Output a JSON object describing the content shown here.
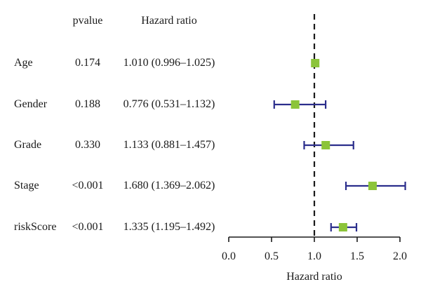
{
  "table": {
    "header_pvalue": "pvalue",
    "header_hr": "Hazard ratio",
    "rows": [
      {
        "variable": "Age",
        "pvalue": "0.174",
        "hr_text": "1.010 (0.996–1.025)"
      },
      {
        "variable": "Gender",
        "pvalue": "0.188",
        "hr_text": "0.776 (0.531–1.132)"
      },
      {
        "variable": "Grade",
        "pvalue": "0.330",
        "hr_text": "1.133 (0.881–1.457)"
      },
      {
        "variable": "Stage",
        "pvalue": "<0.001",
        "hr_text": "1.680 (1.369–2.062)"
      },
      {
        "variable": "riskScore",
        "pvalue": "<0.001",
        "hr_text": "1.335 (1.195–1.492)"
      }
    ]
  },
  "chart_data": {
    "type": "forest",
    "xlabel": "Hazard ratio",
    "xlim": [
      0,
      2
    ],
    "xticks": [
      "0.0",
      "0.5",
      "1.0",
      "1.5",
      "2.0"
    ],
    "reference_line": 1.0,
    "categories": [
      "Age",
      "Gender",
      "Grade",
      "Stage",
      "riskScore"
    ],
    "estimates": [
      1.01,
      0.776,
      1.133,
      1.68,
      1.335
    ],
    "lower": [
      0.996,
      0.531,
      0.881,
      1.369,
      1.195
    ],
    "upper": [
      1.025,
      1.132,
      1.457,
      2.062,
      1.492
    ],
    "colors": {
      "point": "#8cc43a",
      "ci_line": "#2b2e8c",
      "reference": "#1a1a1a",
      "axis": "#1a1a1a"
    }
  }
}
